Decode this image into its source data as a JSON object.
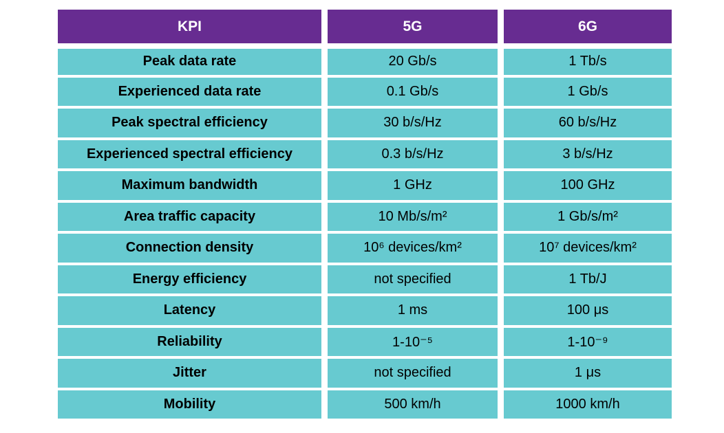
{
  "table": {
    "headers": [
      "KPI",
      "5G",
      "6G"
    ],
    "rows": [
      {
        "kpi": "Peak data rate",
        "g5": "20 Gb/s",
        "g6": "1 Tb/s"
      },
      {
        "kpi": "Experienced data rate",
        "g5": "0.1 Gb/s",
        "g6": "1 Gb/s"
      },
      {
        "kpi": "Peak spectral efficiency",
        "g5": "30 b/s/Hz",
        "g6": "60 b/s/Hz"
      },
      {
        "kpi": "Experienced spectral efficiency",
        "g5": "0.3 b/s/Hz",
        "g6": "3 b/s/Hz"
      },
      {
        "kpi": "Maximum bandwidth",
        "g5": "1 GHz",
        "g6": "100 GHz"
      },
      {
        "kpi": "Area traffic capacity",
        "g5": "10 Mb/s/m²",
        "g6": "1 Gb/s/m²"
      },
      {
        "kpi": "Connection density",
        "g5": "10⁶ devices/km²",
        "g6": "10⁷ devices/km²"
      },
      {
        "kpi": "Energy efficiency",
        "g5": "not specified",
        "g6": "1 Tb/J"
      },
      {
        "kpi": "Latency",
        "g5": "1 ms",
        "g6": "100 μs"
      },
      {
        "kpi": "Reliability",
        "g5": "1-10⁻⁵",
        "g6": "1-10⁻⁹"
      },
      {
        "kpi": "Jitter",
        "g5": "not specified",
        "g6": "1 μs"
      },
      {
        "kpi": "Mobility",
        "g5": "500 km/h",
        "g6": "1000 km/h"
      }
    ]
  },
  "colors": {
    "header_bg": "#672c91",
    "cell_bg": "#67cad0",
    "header_text": "#ffffff"
  }
}
